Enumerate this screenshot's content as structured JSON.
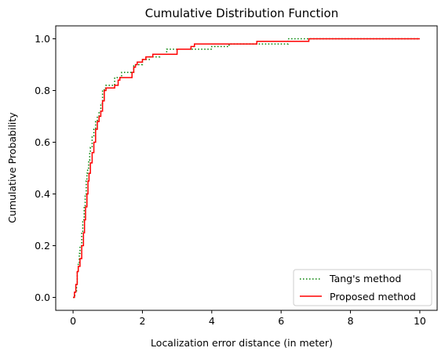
{
  "chart_data": {
    "type": "line",
    "title": "Cumulative Distribution Function",
    "xlabel": "Localization error distance (in meter)",
    "ylabel": "Cumulative Probability",
    "xlim": [
      -0.5,
      10.5
    ],
    "ylim": [
      -0.05,
      1.05
    ],
    "xticks": [
      0,
      2,
      4,
      6,
      8,
      10
    ],
    "yticks": [
      0.0,
      0.2,
      0.4,
      0.6,
      0.8,
      1.0
    ],
    "xtick_labels": [
      "0",
      "2",
      "4",
      "6",
      "8",
      "10"
    ],
    "ytick_labels": [
      "0.0",
      "0.2",
      "0.4",
      "0.6",
      "0.8",
      "1.0"
    ],
    "grid": false,
    "legend_position": "bottom-right",
    "step": true,
    "series": [
      {
        "name": "Tang's method",
        "color": "#008000",
        "linestyle": "dotted",
        "x": [
          0.0,
          0.05,
          0.1,
          0.12,
          0.15,
          0.18,
          0.2,
          0.25,
          0.28,
          0.32,
          0.35,
          0.38,
          0.4,
          0.42,
          0.45,
          0.48,
          0.5,
          0.55,
          0.6,
          0.65,
          0.7,
          0.75,
          0.8,
          0.85,
          0.9,
          0.95,
          1.0,
          1.2,
          1.4,
          1.6,
          1.7,
          1.75,
          1.8,
          2.0,
          2.2,
          2.5,
          2.7,
          3.0,
          3.5,
          4.0,
          4.5,
          5.5,
          6.2,
          6.8,
          10.0
        ],
        "y": [
          0.0,
          0.02,
          0.05,
          0.1,
          0.13,
          0.17,
          0.2,
          0.25,
          0.3,
          0.35,
          0.4,
          0.45,
          0.48,
          0.5,
          0.53,
          0.56,
          0.58,
          0.62,
          0.65,
          0.68,
          0.7,
          0.72,
          0.75,
          0.8,
          0.81,
          0.82,
          0.82,
          0.85,
          0.87,
          0.87,
          0.87,
          0.9,
          0.9,
          0.92,
          0.93,
          0.94,
          0.96,
          0.96,
          0.96,
          0.97,
          0.98,
          0.98,
          1.0,
          1.0,
          1.0
        ]
      },
      {
        "name": "Proposed method",
        "color": "#ff0000",
        "linestyle": "solid",
        "x": [
          0.0,
          0.04,
          0.08,
          0.12,
          0.15,
          0.2,
          0.25,
          0.3,
          0.33,
          0.36,
          0.4,
          0.43,
          0.46,
          0.5,
          0.55,
          0.6,
          0.65,
          0.7,
          0.75,
          0.8,
          0.85,
          0.9,
          0.95,
          1.0,
          1.2,
          1.3,
          1.35,
          1.6,
          1.7,
          1.75,
          1.8,
          1.85,
          2.0,
          2.1,
          2.3,
          2.5,
          3.0,
          3.3,
          3.4,
          3.5,
          4.5,
          5.3,
          6.8,
          10.0
        ],
        "y": [
          0.0,
          0.02,
          0.05,
          0.1,
          0.12,
          0.15,
          0.2,
          0.25,
          0.3,
          0.35,
          0.4,
          0.45,
          0.48,
          0.52,
          0.56,
          0.6,
          0.65,
          0.68,
          0.7,
          0.72,
          0.76,
          0.8,
          0.81,
          0.81,
          0.82,
          0.84,
          0.85,
          0.85,
          0.87,
          0.89,
          0.9,
          0.91,
          0.92,
          0.93,
          0.94,
          0.94,
          0.96,
          0.96,
          0.97,
          0.98,
          0.98,
          0.99,
          1.0,
          1.0
        ]
      }
    ]
  }
}
